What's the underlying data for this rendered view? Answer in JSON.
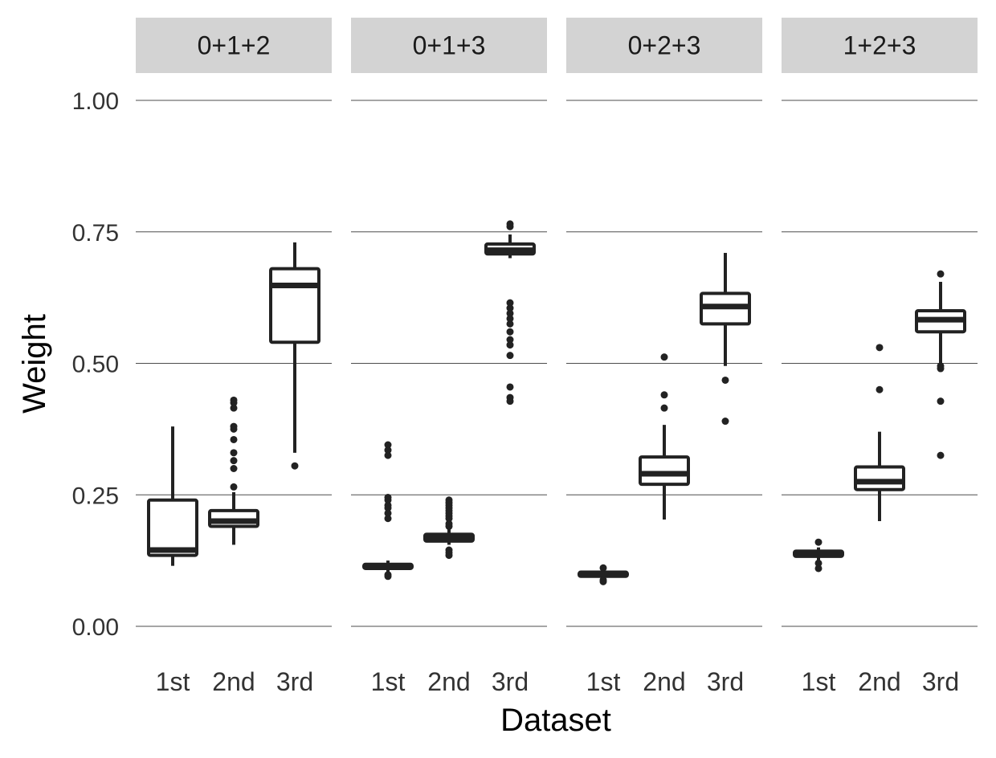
{
  "chart_data": {
    "type": "boxplot",
    "xlabel": "Dataset",
    "ylabel": "Weight",
    "ylim": [
      0,
      1
    ],
    "yticks": [
      "0.00",
      "0.25",
      "0.50",
      "0.75",
      "1.00"
    ],
    "ytick_values": [
      0,
      0.25,
      0.5,
      0.75,
      1.0
    ],
    "categories": [
      "1st",
      "2nd",
      "3rd"
    ],
    "grid": true,
    "colors": {
      "strip": "#d3d3d3",
      "ink": "#222222",
      "grid": "#4d4d4d"
    },
    "panels": [
      {
        "label": "0+1+2",
        "boxes": [
          {
            "category": "1st",
            "min": 0.115,
            "q1": 0.135,
            "median": 0.145,
            "q3": 0.24,
            "max": 0.38,
            "outliers": []
          },
          {
            "category": "2nd",
            "min": 0.155,
            "q1": 0.19,
            "median": 0.2,
            "q3": 0.22,
            "max": 0.255,
            "outliers": [
              0.265,
              0.3,
              0.315,
              0.33,
              0.355,
              0.375,
              0.38,
              0.415,
              0.425,
              0.43
            ]
          },
          {
            "category": "3rd",
            "min": 0.33,
            "q1": 0.54,
            "median": 0.648,
            "q3": 0.68,
            "max": 0.73,
            "outliers": [
              0.305
            ]
          }
        ]
      },
      {
        "label": "0+1+3",
        "boxes": [
          {
            "category": "1st",
            "min": 0.103,
            "q1": 0.11,
            "median": 0.114,
            "q3": 0.118,
            "max": 0.125,
            "outliers": [
              0.095,
              0.098,
              0.205,
              0.215,
              0.225,
              0.23,
              0.24,
              0.245,
              0.325,
              0.335,
              0.345
            ]
          },
          {
            "category": "2nd",
            "min": 0.155,
            "q1": 0.162,
            "median": 0.168,
            "q3": 0.175,
            "max": 0.185,
            "outliers": [
              0.135,
              0.14,
              0.145,
              0.19,
              0.195,
              0.205,
              0.21,
              0.215,
              0.22,
              0.225,
              0.23,
              0.235,
              0.24
            ]
          },
          {
            "category": "3rd",
            "min": 0.7,
            "q1": 0.708,
            "median": 0.715,
            "q3": 0.727,
            "max": 0.745,
            "outliers": [
              0.428,
              0.435,
              0.455,
              0.515,
              0.535,
              0.545,
              0.56,
              0.575,
              0.585,
              0.595,
              0.605,
              0.615,
              0.76,
              0.765
            ]
          }
        ]
      },
      {
        "label": "0+2+3",
        "boxes": [
          {
            "category": "1st",
            "min": 0.093,
            "q1": 0.095,
            "median": 0.099,
            "q3": 0.103,
            "max": 0.107,
            "outliers": [
              0.085,
              0.088,
              0.111
            ]
          },
          {
            "category": "2nd",
            "min": 0.203,
            "q1": 0.27,
            "median": 0.29,
            "q3": 0.322,
            "max": 0.383,
            "outliers": [
              0.415,
              0.44,
              0.512
            ]
          },
          {
            "category": "3rd",
            "min": 0.495,
            "q1": 0.575,
            "median": 0.608,
            "q3": 0.633,
            "max": 0.71,
            "outliers": [
              0.39,
              0.468
            ]
          }
        ]
      },
      {
        "label": "1+2+3",
        "boxes": [
          {
            "category": "1st",
            "min": 0.125,
            "q1": 0.133,
            "median": 0.138,
            "q3": 0.143,
            "max": 0.15,
            "outliers": [
              0.11,
              0.12,
              0.16
            ]
          },
          {
            "category": "2nd",
            "min": 0.2,
            "q1": 0.26,
            "median": 0.275,
            "q3": 0.303,
            "max": 0.37,
            "outliers": [
              0.45,
              0.53
            ]
          },
          {
            "category": "3rd",
            "min": 0.5,
            "q1": 0.56,
            "median": 0.583,
            "q3": 0.6,
            "max": 0.655,
            "outliers": [
              0.325,
              0.428,
              0.49,
              0.495,
              0.67
            ]
          }
        ]
      }
    ]
  }
}
